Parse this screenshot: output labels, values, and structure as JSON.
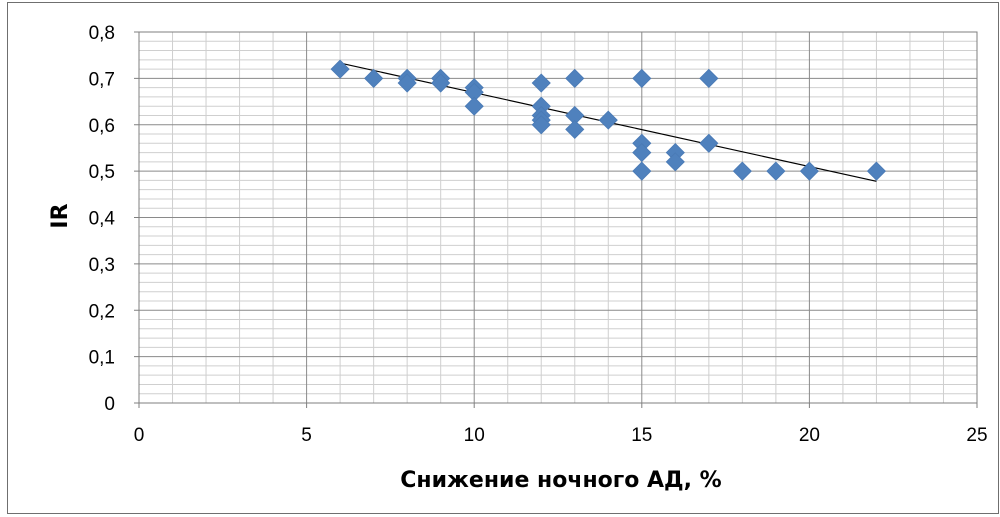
{
  "chart_data": {
    "type": "scatter",
    "xlabel": "Снижение ночного АД, %",
    "ylabel": "IR",
    "xlim": [
      0,
      25
    ],
    "ylim": [
      0,
      0.8
    ],
    "x_ticks": [
      "0",
      "5",
      "10",
      "15",
      "20",
      "25"
    ],
    "y_ticks": [
      "0",
      "0,1",
      "0,2",
      "0,3",
      "0,4",
      "0,5",
      "0,6",
      "0,7",
      "0,8"
    ],
    "grid": true,
    "marker": "diamond",
    "marker_color": "#4f81bd",
    "series": [
      {
        "points": [
          [
            6,
            0.72
          ],
          [
            7,
            0.7
          ],
          [
            8,
            0.7
          ],
          [
            8,
            0.69
          ],
          [
            9,
            0.7
          ],
          [
            9,
            0.69
          ],
          [
            10,
            0.68
          ],
          [
            10,
            0.67
          ],
          [
            10,
            0.64
          ],
          [
            12,
            0.69
          ],
          [
            12,
            0.64
          ],
          [
            12,
            0.62
          ],
          [
            12,
            0.61
          ],
          [
            12,
            0.6
          ],
          [
            13,
            0.7
          ],
          [
            13,
            0.62
          ],
          [
            13,
            0.59
          ],
          [
            14,
            0.61
          ],
          [
            15,
            0.7
          ],
          [
            15,
            0.56
          ],
          [
            15,
            0.54
          ],
          [
            15,
            0.5
          ],
          [
            16,
            0.54
          ],
          [
            16,
            0.52
          ],
          [
            17,
            0.7
          ],
          [
            17,
            0.56
          ],
          [
            18,
            0.5
          ],
          [
            19,
            0.5
          ],
          [
            20,
            0.5
          ],
          [
            22,
            0.5
          ]
        ]
      }
    ],
    "trendline": {
      "type": "linear",
      "from": [
        6,
        0.733
      ],
      "to": [
        22,
        0.478
      ],
      "color": "#000000"
    }
  }
}
